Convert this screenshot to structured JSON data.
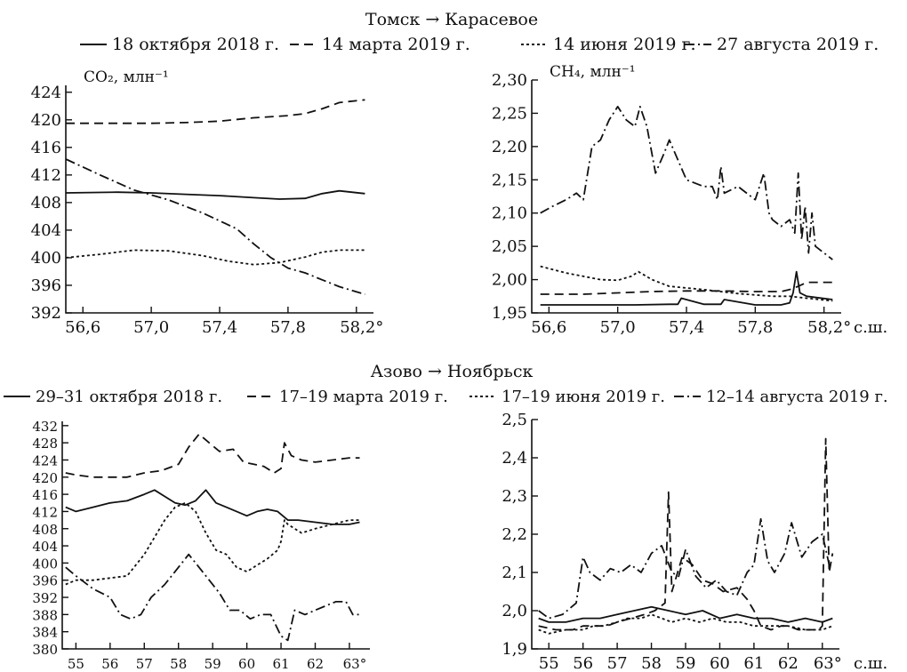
{
  "figure_top": {
    "title": "Томск → Карасевое",
    "legend": [
      {
        "style": "solid",
        "label": "18 октября 2018 г."
      },
      {
        "style": "dash",
        "label": "14 марта 2019 г."
      },
      {
        "style": "dot",
        "label": "14 июня 2019 г."
      },
      {
        "style": "dashdot",
        "label": "27 августа 2019 г."
      }
    ]
  },
  "figure_bottom": {
    "title": "Азово → Ноябрьск",
    "legend": [
      {
        "style": "solid",
        "label": "29–31 октября 2018 г."
      },
      {
        "style": "dash",
        "label": "17–19 марта 2019 г."
      },
      {
        "style": "dot",
        "label": "17–19 июня 2019 г."
      },
      {
        "style": "dashdot",
        "label": "12–14 августа 2019 г."
      }
    ]
  },
  "colors": {
    "line": "#111111",
    "background": "#ffffff"
  },
  "chart_data": [
    {
      "id": "top-co2",
      "type": "line",
      "ylabel": "CO₂, млн⁻¹",
      "xlabel": "",
      "xlim": [
        56.5,
        58.3
      ],
      "ylim": [
        392,
        425
      ],
      "xticks": [
        56.6,
        57.0,
        57.4,
        57.8,
        58.2
      ],
      "xtick_labels": [
        "56,6",
        "57,0",
        "57,4",
        "57,8",
        "58,2°"
      ],
      "yticks": [
        392,
        396,
        400,
        404,
        408,
        412,
        416,
        420,
        424
      ],
      "ytick_labels": [
        "392",
        "396",
        "400",
        "404",
        "408",
        "412",
        "416",
        "420",
        "424"
      ],
      "series": [
        {
          "style": "solid",
          "x": [
            56.5,
            56.8,
            57.0,
            57.2,
            57.4,
            57.6,
            57.75,
            57.9,
            58.0,
            58.1,
            58.25
          ],
          "y": [
            409.4,
            409.5,
            409.4,
            409.2,
            409.0,
            408.7,
            408.5,
            408.6,
            409.3,
            409.7,
            409.3
          ]
        },
        {
          "style": "dash",
          "x": [
            56.5,
            56.8,
            57.0,
            57.2,
            57.4,
            57.6,
            57.8,
            57.9,
            58.0,
            58.1,
            58.25
          ],
          "y": [
            419.5,
            419.5,
            419.5,
            419.6,
            419.8,
            420.3,
            420.6,
            420.9,
            421.6,
            422.5,
            422.9
          ]
        },
        {
          "style": "dot",
          "x": [
            56.5,
            56.7,
            56.9,
            57.1,
            57.3,
            57.45,
            57.6,
            57.75,
            57.9,
            58.0,
            58.1,
            58.25
          ],
          "y": [
            400.0,
            400.5,
            401.1,
            401.0,
            400.3,
            399.5,
            399.0,
            399.3,
            400.1,
            400.8,
            401.1,
            401.1
          ]
        },
        {
          "style": "dashdot",
          "x": [
            56.5,
            56.7,
            56.9,
            57.1,
            57.3,
            57.5,
            57.6,
            57.7,
            57.8,
            57.9,
            58.0,
            58.1,
            58.25
          ],
          "y": [
            414.3,
            412.0,
            409.8,
            408.4,
            406.5,
            404.2,
            402.0,
            400.0,
            398.5,
            397.8,
            396.8,
            395.8,
            394.7
          ]
        }
      ]
    },
    {
      "id": "top-ch4",
      "type": "line",
      "ylabel": "CH₄, млн⁻¹",
      "xlabel": "с.ш.",
      "xlim": [
        56.5,
        58.3
      ],
      "ylim": [
        1.95,
        2.3
      ],
      "xticks": [
        56.6,
        57.0,
        57.4,
        57.8,
        58.2
      ],
      "xtick_labels": [
        "56,6",
        "57,0",
        "57,4",
        "57,8",
        "58,2°"
      ],
      "yticks": [
        1.95,
        2.0,
        2.05,
        2.1,
        2.15,
        2.2,
        2.25,
        2.3
      ],
      "ytick_labels": [
        "1,95",
        "2,00",
        "2,05",
        "2,10",
        "2,15",
        "2,20",
        "2,25",
        "2,30"
      ],
      "series": [
        {
          "style": "solid",
          "x": [
            56.55,
            56.7,
            56.9,
            57.1,
            57.3,
            57.35,
            57.37,
            57.5,
            57.6,
            57.62,
            57.8,
            57.95,
            58.0,
            58.02,
            58.04,
            58.06,
            58.1,
            58.25
          ],
          "y": [
            1.962,
            1.962,
            1.962,
            1.962,
            1.963,
            1.963,
            1.972,
            1.963,
            1.963,
            1.97,
            1.962,
            1.962,
            1.965,
            1.98,
            2.012,
            1.98,
            1.975,
            1.97
          ]
        },
        {
          "style": "dash",
          "x": [
            56.55,
            56.8,
            57.0,
            57.2,
            57.4,
            57.6,
            57.8,
            57.95,
            58.0,
            58.05,
            58.1,
            58.25
          ],
          "y": [
            1.978,
            1.978,
            1.98,
            1.982,
            1.983,
            1.983,
            1.982,
            1.982,
            1.985,
            1.99,
            1.996,
            1.996
          ]
        },
        {
          "style": "dot",
          "x": [
            56.55,
            56.7,
            56.9,
            57.0,
            57.08,
            57.12,
            57.2,
            57.3,
            57.5,
            57.7,
            57.9,
            58.0,
            58.1,
            58.25
          ],
          "y": [
            2.02,
            2.01,
            2.0,
            1.999,
            2.005,
            2.012,
            2.0,
            1.99,
            1.985,
            1.979,
            1.975,
            1.975,
            1.972,
            1.968
          ]
        },
        {
          "style": "dashdot",
          "x": [
            56.55,
            56.62,
            56.7,
            56.76,
            56.8,
            56.85,
            56.9,
            56.95,
            57.0,
            57.05,
            57.1,
            57.13,
            57.17,
            57.22,
            57.27,
            57.3,
            57.4,
            57.5,
            57.55,
            57.58,
            57.6,
            57.62,
            57.7,
            57.8,
            57.85,
            57.88,
            57.9,
            57.95,
            58.0,
            58.03,
            58.05,
            58.07,
            58.09,
            58.11,
            58.13,
            58.15,
            58.2,
            58.25
          ],
          "y": [
            2.1,
            2.11,
            2.12,
            2.13,
            2.12,
            2.2,
            2.21,
            2.24,
            2.26,
            2.24,
            2.23,
            2.26,
            2.23,
            2.16,
            2.19,
            2.21,
            2.15,
            2.14,
            2.14,
            2.12,
            2.17,
            2.13,
            2.14,
            2.12,
            2.16,
            2.1,
            2.09,
            2.08,
            2.09,
            2.07,
            2.16,
            2.06,
            2.11,
            2.04,
            2.1,
            2.05,
            2.04,
            2.03
          ]
        }
      ]
    },
    {
      "id": "bottom-co2",
      "type": "line",
      "ylabel": "",
      "xlabel": "",
      "xlim": [
        54.6,
        63.6
      ],
      "ylim": [
        380,
        433
      ],
      "xticks": [
        55,
        56,
        57,
        58,
        59,
        60,
        61,
        62,
        63
      ],
      "xtick_labels": [
        "55",
        "56",
        "57",
        "58",
        "59",
        "60",
        "61",
        "62",
        "63°"
      ],
      "yticks": [
        380,
        384,
        388,
        392,
        396,
        400,
        404,
        408,
        412,
        416,
        420,
        424,
        428,
        432
      ],
      "ytick_labels": [
        "380",
        "384",
        "388",
        "392",
        "396",
        "400",
        "404",
        "408",
        "412",
        "416",
        "420",
        "424",
        "428",
        "432"
      ],
      "series": [
        {
          "style": "solid",
          "x": [
            54.7,
            55.0,
            55.5,
            56.0,
            56.5,
            57.0,
            57.3,
            57.6,
            57.9,
            58.2,
            58.5,
            58.8,
            59.1,
            59.4,
            59.7,
            60.0,
            60.3,
            60.6,
            60.9,
            61.2,
            61.5,
            62.0,
            62.5,
            63.0,
            63.3
          ],
          "y": [
            413,
            412,
            413,
            414,
            414.5,
            416,
            417,
            415.5,
            414,
            413.5,
            414.5,
            417,
            414,
            413,
            412,
            411,
            412,
            412.5,
            412,
            410,
            410,
            409.5,
            409,
            409,
            409.5
          ]
        },
        {
          "style": "dash",
          "x": [
            54.7,
            55.0,
            55.5,
            56.0,
            56.5,
            57.0,
            57.5,
            58.0,
            58.3,
            58.6,
            58.9,
            59.2,
            59.6,
            59.9,
            60.2,
            60.5,
            60.8,
            61.0,
            61.1,
            61.3,
            61.6,
            62.0,
            62.5,
            63.0,
            63.3
          ],
          "y": [
            421,
            420.5,
            420,
            420,
            420,
            421,
            421.5,
            423,
            427,
            430,
            428,
            426,
            426.5,
            423.5,
            423,
            422.5,
            421,
            422,
            428,
            425,
            424,
            423.5,
            424,
            424.5,
            424.5
          ]
        },
        {
          "style": "dot",
          "x": [
            54.7,
            55.0,
            55.5,
            56.0,
            56.5,
            57.0,
            57.3,
            57.6,
            57.9,
            58.2,
            58.5,
            58.8,
            59.1,
            59.4,
            59.7,
            60.0,
            60.3,
            60.6,
            60.9,
            61.0,
            61.1,
            61.2,
            61.6,
            62.0,
            62.5,
            63.0,
            63.3
          ],
          "y": [
            395,
            396,
            396,
            396.5,
            397,
            402,
            406,
            410,
            413,
            414,
            412,
            407,
            403,
            402,
            399,
            398,
            399.5,
            401,
            403,
            405,
            410,
            409,
            407,
            408,
            409,
            410,
            410
          ]
        },
        {
          "style": "dashdot",
          "x": [
            54.7,
            55.0,
            55.5,
            56.0,
            56.3,
            56.6,
            56.9,
            57.2,
            57.6,
            58.0,
            58.3,
            58.6,
            58.9,
            59.2,
            59.5,
            59.8,
            60.1,
            60.4,
            60.7,
            61.0,
            61.2,
            61.4,
            61.7,
            62.0,
            62.3,
            62.6,
            62.9,
            63.1,
            63.3
          ],
          "y": [
            399,
            397,
            394,
            392,
            388,
            387,
            388,
            392,
            395,
            399,
            402,
            399,
            396,
            393,
            389,
            389,
            387,
            388,
            388,
            383,
            382,
            389,
            388,
            389,
            390,
            391,
            391,
            388,
            388
          ]
        }
      ]
    },
    {
      "id": "bottom-ch4",
      "type": "line",
      "ylabel": "",
      "xlabel": "с.ш.",
      "xlim": [
        54.5,
        63.5
      ],
      "ylim": [
        1.9,
        2.5
      ],
      "xticks": [
        55,
        56,
        57,
        58,
        59,
        60,
        61,
        62,
        63
      ],
      "xtick_labels": [
        "55",
        "56",
        "57",
        "58",
        "59",
        "60",
        "61",
        "62",
        "63°"
      ],
      "yticks": [
        1.9,
        2.0,
        2.1,
        2.2,
        2.3,
        2.4,
        2.5
      ],
      "ytick_labels": [
        "1,9",
        "2,0",
        "2,1",
        "2,2",
        "2,3",
        "2,4",
        "2,5"
      ],
      "series": [
        {
          "style": "solid",
          "x": [
            54.7,
            55.0,
            55.5,
            56.0,
            56.5,
            57.0,
            57.5,
            58.0,
            58.5,
            59.0,
            59.5,
            60.0,
            60.5,
            61.0,
            61.5,
            62.0,
            62.5,
            63.0,
            63.3
          ],
          "y": [
            1.98,
            1.97,
            1.97,
            1.98,
            1.98,
            1.99,
            2.0,
            2.01,
            2.0,
            1.99,
            2.0,
            1.98,
            1.99,
            1.98,
            1.98,
            1.97,
            1.98,
            1.97,
            1.98
          ]
        },
        {
          "style": "dash",
          "x": [
            54.7,
            55.2,
            55.7,
            56.0,
            56.3,
            56.7,
            57.0,
            57.4,
            57.8,
            58.1,
            58.4,
            58.5,
            58.6,
            58.9,
            59.2,
            59.5,
            59.8,
            60.1,
            60.5,
            60.8,
            61.0,
            61.2,
            61.5,
            61.8,
            62.0,
            62.3,
            62.6,
            62.9,
            63.0,
            63.1,
            63.2,
            63.3
          ],
          "y": [
            1.96,
            1.95,
            1.95,
            1.96,
            1.96,
            1.96,
            1.97,
            1.98,
            1.99,
            2.0,
            2.02,
            2.31,
            2.05,
            2.14,
            2.12,
            2.08,
            2.07,
            2.05,
            2.06,
            2.03,
            2.0,
            1.96,
            1.95,
            1.96,
            1.96,
            1.95,
            1.95,
            1.95,
            1.96,
            2.45,
            2.1,
            2.15
          ]
        },
        {
          "style": "dot",
          "x": [
            54.7,
            55.0,
            55.5,
            56.0,
            56.3,
            56.6,
            57.0,
            57.3,
            57.7,
            58.0,
            58.3,
            58.6,
            59.0,
            59.4,
            59.8,
            60.2,
            60.6,
            61.0,
            61.5,
            62.0,
            62.5,
            63.0,
            63.3
          ],
          "y": [
            1.95,
            1.94,
            1.95,
            1.95,
            1.96,
            1.96,
            1.97,
            1.98,
            1.98,
            1.99,
            1.98,
            1.97,
            1.98,
            1.97,
            1.98,
            1.97,
            1.97,
            1.96,
            1.96,
            1.96,
            1.95,
            1.95,
            1.96
          ]
        },
        {
          "style": "dashdot",
          "x": [
            54.7,
            55.0,
            55.4,
            55.8,
            56.0,
            56.2,
            56.5,
            56.8,
            57.1,
            57.4,
            57.7,
            58.0,
            58.3,
            58.6,
            58.8,
            59.0,
            59.3,
            59.6,
            59.9,
            60.2,
            60.5,
            60.8,
            61.0,
            61.2,
            61.4,
            61.6,
            61.9,
            62.1,
            62.4,
            62.7,
            63.0,
            63.2
          ],
          "y": [
            2.0,
            1.98,
            1.99,
            2.02,
            2.14,
            2.1,
            2.08,
            2.11,
            2.1,
            2.12,
            2.1,
            2.15,
            2.17,
            2.1,
            2.09,
            2.16,
            2.09,
            2.06,
            2.08,
            2.05,
            2.04,
            2.1,
            2.12,
            2.24,
            2.13,
            2.1,
            2.15,
            2.23,
            2.14,
            2.18,
            2.2,
            2.12
          ]
        }
      ]
    }
  ]
}
